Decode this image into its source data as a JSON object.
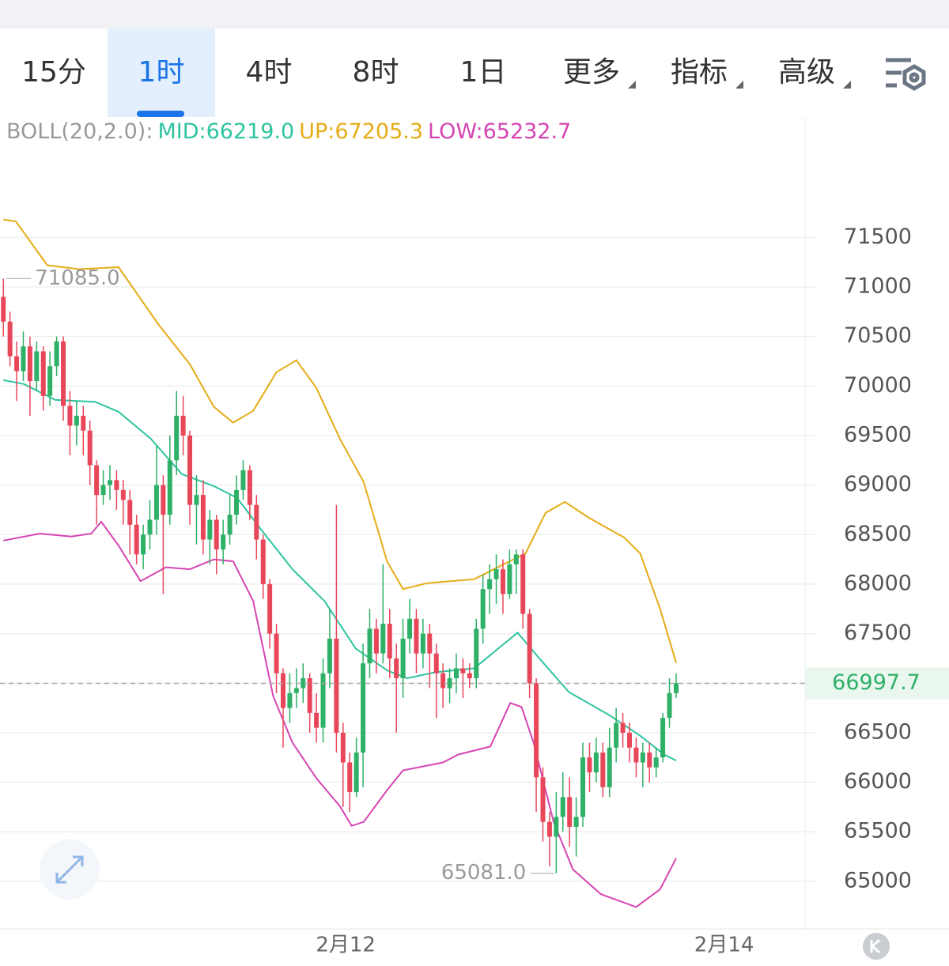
{
  "tabs": [
    "15分",
    "1时",
    "4时",
    "8时",
    "1日",
    "更多",
    "指标",
    "高级"
  ],
  "active_tab": 1,
  "chart_data": {
    "type": "candlestick",
    "indicator": "BOLL(20,2.0):",
    "up_color": "#2eb067",
    "down_color": "#e8475a",
    "open": [
      70900,
      70650,
      70300,
      70150,
      70400,
      70050,
      70350,
      69900,
      70200,
      70450,
      69800,
      69600,
      69700,
      69550,
      69200,
      68900,
      69000,
      69050,
      68950,
      68850,
      68600,
      68300,
      68500,
      68650,
      69000,
      68700,
      69250,
      69700,
      69500,
      68800,
      68900,
      68450,
      68650,
      68350,
      68500,
      68700,
      68950,
      69150,
      68800,
      68450,
      68000,
      67500,
      67100,
      66750,
      66900,
      66950,
      67050,
      66700,
      66550,
      67100,
      67450,
      66500,
      66200,
      65900,
      66300,
      67200,
      67550,
      67300,
      67600,
      67250,
      67050,
      67450,
      67650,
      67300,
      67500,
      67300,
      67100,
      66950,
      67050,
      67150,
      67100,
      67050,
      67550,
      67950,
      68050,
      68150,
      67900,
      68200,
      68300,
      67700,
      67000,
      66050,
      65600,
      65450,
      65650,
      65850,
      65550,
      65650,
      66250,
      66100,
      66300,
      65950,
      66350,
      66600,
      66500,
      66350,
      66200,
      66300,
      66150,
      66250,
      66650,
      66900
    ],
    "high": [
      71085,
      70750,
      70450,
      70550,
      70500,
      70450,
      70400,
      70350,
      70500,
      70500,
      69950,
      69850,
      69800,
      69650,
      69250,
      69150,
      69200,
      69150,
      69050,
      68950,
      68700,
      68600,
      68850,
      69400,
      69100,
      69500,
      69950,
      69900,
      69550,
      69100,
      69050,
      68750,
      68700,
      68650,
      68900,
      69100,
      69250,
      69200,
      68900,
      68500,
      68050,
      67600,
      67150,
      67100,
      67150,
      67200,
      67100,
      66900,
      67250,
      67750,
      68800,
      66600,
      66300,
      66450,
      67400,
      67750,
      67650,
      68200,
      67750,
      67400,
      67650,
      67850,
      67750,
      67650,
      67600,
      67400,
      67200,
      67150,
      67300,
      67250,
      67200,
      67650,
      68100,
      68200,
      68300,
      68250,
      68350,
      68350,
      68350,
      67750,
      67050,
      66150,
      65700,
      65900,
      66100,
      66050,
      65850,
      66400,
      66400,
      66450,
      66400,
      66550,
      66750,
      66700,
      66600,
      66450,
      66400,
      66400,
      66350,
      66700,
      67050,
      67100
    ],
    "low": [
      70500,
      70200,
      69850,
      70050,
      69700,
      69950,
      69750,
      69800,
      70100,
      69650,
      69300,
      69400,
      69300,
      69000,
      68600,
      68800,
      68850,
      68750,
      68600,
      68300,
      68200,
      68150,
      68350,
      68500,
      67900,
      68600,
      69100,
      69300,
      68600,
      68400,
      68300,
      68200,
      68100,
      68200,
      68400,
      68600,
      68850,
      68650,
      68250,
      67850,
      67350,
      66900,
      66350,
      66600,
      66750,
      66800,
      66500,
      66400,
      66400,
      66950,
      66300,
      65750,
      65700,
      65850,
      65950,
      67050,
      67100,
      67200,
      67050,
      66500,
      66850,
      67300,
      67100,
      67150,
      66950,
      66650,
      66750,
      66800,
      66900,
      66850,
      66950,
      66950,
      67400,
      67700,
      67800,
      67700,
      67850,
      67900,
      67550,
      66850,
      65700,
      65400,
      65150,
      65081,
      65500,
      65350,
      65250,
      65550,
      65900,
      66000,
      65850,
      65850,
      66200,
      66350,
      66200,
      66050,
      65950,
      66000,
      66050,
      66200,
      66550,
      66850
    ],
    "close": [
      70650,
      70300,
      70150,
      70400,
      70050,
      70350,
      69900,
      70200,
      70450,
      69800,
      69600,
      69700,
      69550,
      69200,
      68900,
      69000,
      69050,
      68950,
      68850,
      68600,
      68300,
      68500,
      68650,
      69000,
      68700,
      69250,
      69700,
      69500,
      68800,
      68900,
      68450,
      68650,
      68350,
      68500,
      68700,
      68950,
      69150,
      68800,
      68450,
      68000,
      67500,
      67100,
      66750,
      66900,
      66950,
      67050,
      66700,
      66550,
      67100,
      67450,
      66500,
      66200,
      65900,
      66300,
      67200,
      67550,
      67300,
      67600,
      67250,
      67050,
      67450,
      67650,
      67300,
      67500,
      67300,
      67100,
      66950,
      67050,
      67150,
      67100,
      67050,
      67550,
      67950,
      68050,
      68150,
      67900,
      68200,
      68300,
      67700,
      67000,
      66050,
      65600,
      65450,
      65650,
      65850,
      65550,
      65650,
      66250,
      66100,
      66300,
      65950,
      66350,
      66600,
      66500,
      66350,
      66200,
      66300,
      66150,
      66250,
      66650,
      66900,
      67000
    ],
    "bands": [
      {
        "legend": "MID:66219.0",
        "color": "#2ec4a0",
        "x": [
          0,
          3.1,
          7.8,
          13.8,
          17.3,
          22.1,
          26.8,
          31.6,
          35.1,
          38.7,
          43.4,
          48.2,
          52.9,
          57.6,
          60.6,
          64.8,
          70.7,
          74.3,
          77.2,
          80.2,
          84.9,
          90.9,
          95.6,
          99.2,
          101
        ],
        "values": [
          70060,
          70020,
          69860,
          69840,
          69740,
          69470,
          69110,
          68990,
          68870,
          68550,
          68150,
          67830,
          67350,
          67130,
          67050,
          67110,
          67150,
          67350,
          67510,
          67270,
          66910,
          66680,
          66470,
          66280,
          66219
        ]
      },
      {
        "legend": "UP:67205.3",
        "color": "#e5ac16",
        "x": [
          0,
          1.9,
          6.6,
          11.4,
          17.3,
          23.3,
          28,
          31.6,
          34.5,
          37.5,
          41,
          44,
          47,
          50.5,
          54.1,
          57.6,
          60,
          63.6,
          70.7,
          75.4,
          78.4,
          81.4,
          84.3,
          87.9,
          93.2,
          95.6,
          98.6,
          101
        ],
        "values": [
          71680,
          71660,
          71220,
          71180,
          71200,
          70620,
          70220,
          69790,
          69630,
          69750,
          70140,
          70260,
          69980,
          69470,
          69030,
          68230,
          67950,
          68010,
          68050,
          68210,
          68310,
          68720,
          68830,
          68670,
          68470,
          68310,
          67750,
          67205.3
        ]
      },
      {
        "legend": "LOW:65232.7",
        "color": "#d645b3",
        "x": [
          0,
          5.5,
          10.2,
          13.2,
          14.7,
          17.3,
          20.6,
          24.4,
          28,
          31.6,
          34.5,
          37.5,
          40.5,
          43.4,
          47,
          50.5,
          52.3,
          54.1,
          57.6,
          60,
          66,
          68.3,
          73.1,
          76.1,
          77.8,
          79.6,
          82.6,
          85.5,
          89.7,
          95,
          98.6,
          101
        ],
        "values": [
          68440,
          68510,
          68480,
          68510,
          68630,
          68390,
          68030,
          68170,
          68150,
          68250,
          68230,
          67830,
          66870,
          66400,
          66040,
          65760,
          65560,
          65600,
          65920,
          66120,
          66200,
          66280,
          66360,
          66800,
          66760,
          66400,
          65600,
          65120,
          64870,
          64740,
          64920,
          65232.7
        ]
      }
    ],
    "xlim": [
      -0.5,
      120
    ],
    "xticks": [
      {
        "value": 51.4,
        "label": "2月12"
      },
      {
        "value": 108.2,
        "label": "2月14"
      }
    ],
    "ylim": [
      64520,
      72700
    ],
    "yticks": [
      65000,
      65500,
      66000,
      66500,
      67000,
      67500,
      68000,
      68500,
      69000,
      69500,
      70000,
      70500,
      71000,
      71500
    ],
    "y_axis_side": "right",
    "grid": true,
    "max_marker": {
      "value": 71085,
      "label": "71085.0",
      "index": 0
    },
    "min_marker": {
      "value": 65081,
      "label": "65081.0",
      "index": 83
    },
    "current_price": {
      "value": 66997.7,
      "label": "66997.7"
    }
  }
}
